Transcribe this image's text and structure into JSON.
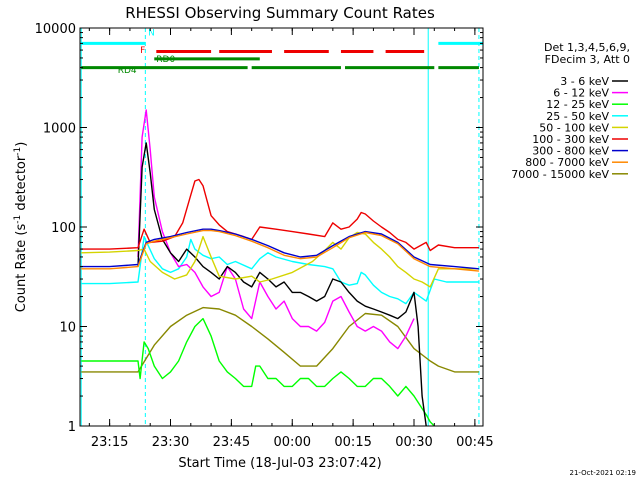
{
  "chart_data": {
    "type": "line",
    "title": "RHESSI Observing Summary Count Rates",
    "xlabel": "Start Time (18-Jul-03 23:07:42)",
    "ylabel": "Count Rate (s^-1 detector^-1)",
    "ylabel_main": "Count Rate (s",
    "ylabel_sup1": "-1",
    "ylabel_mid": " detector",
    "ylabel_sup2": "-1",
    "ylabel_end": ")",
    "x_unit": "minutes from 23:00 (18-Jul-03)",
    "xlim": [
      7.7,
      107
    ],
    "ylim": [
      1,
      10000
    ],
    "yscale": "log",
    "grid": false,
    "x_ticks": [
      {
        "value": 15,
        "label": "23:15"
      },
      {
        "value": 30,
        "label": "23:30"
      },
      {
        "value": 45,
        "label": "23:45"
      },
      {
        "value": 60,
        "label": "00:00"
      },
      {
        "value": 75,
        "label": "00:15"
      },
      {
        "value": 90,
        "label": "00:30"
      },
      {
        "value": 105,
        "label": "00:45"
      }
    ],
    "y_ticks": [
      {
        "value": 1,
        "label": "1"
      },
      {
        "value": 10,
        "label": "10"
      },
      {
        "value": 100,
        "label": "100"
      },
      {
        "value": 1000,
        "label": "1000"
      },
      {
        "value": 10000,
        "label": "10000"
      }
    ],
    "legend": {
      "placement": "right",
      "header": [
        "Det 1,3,4,5,6,9,",
        "FDecim 3, Att 0"
      ],
      "entries": [
        {
          "label": "3 - 6 keV",
          "color": "#000000"
        },
        {
          "label": "6 - 12 keV",
          "color": "#ff00ff"
        },
        {
          "label": "12 - 25 keV",
          "color": "#00ff00"
        },
        {
          "label": "25 - 50 keV",
          "color": "#00ffff"
        },
        {
          "label": "50 - 100 keV",
          "color": "#d4d400"
        },
        {
          "label": "100 - 300 keV",
          "color": "#ee0000"
        },
        {
          "label": "300 - 800 keV",
          "color": "#0000cc"
        },
        {
          "label": "800 - 7000 keV",
          "color": "#ff8800"
        },
        {
          "label": "7000 - 15000 keV",
          "color": "#888800"
        }
      ]
    },
    "series": [
      {
        "color": "#888800",
        "x": [
          8,
          22,
          26,
          30,
          34,
          38,
          42,
          46,
          50,
          54,
          58,
          62,
          66,
          70,
          74,
          78,
          82,
          86,
          90,
          94,
          96,
          100,
          106
        ],
        "y": [
          3.5,
          3.5,
          6.5,
          10,
          13,
          15.5,
          15,
          13,
          10,
          7.5,
          5.5,
          4,
          4,
          6,
          10,
          13.5,
          13,
          10,
          6,
          4.5,
          4,
          3.5,
          3.5
        ]
      },
      {
        "color": "#00ffff",
        "x": [
          8,
          15,
          22,
          23.5,
          24.5,
          26,
          28,
          30,
          32,
          34,
          35,
          36,
          38,
          40,
          42,
          44,
          46,
          50,
          52,
          54,
          56,
          60,
          64,
          68,
          70,
          72,
          74,
          76,
          77,
          78,
          80,
          82,
          84,
          86,
          88,
          90,
          93,
          95,
          98,
          100,
          106
        ],
        "y": [
          27,
          27,
          28,
          80,
          65,
          48,
          38,
          35,
          38,
          50,
          75,
          60,
          52,
          48,
          50,
          42,
          45,
          38,
          48,
          55,
          50,
          45,
          42,
          40,
          38,
          28,
          26,
          27,
          35,
          33,
          26,
          22,
          20,
          19,
          17,
          22,
          18,
          30,
          28,
          28,
          28
        ]
      },
      {
        "color": "#00ff00",
        "x": [
          8,
          22,
          22.5,
          23.5,
          24.5,
          26,
          28,
          30,
          32,
          34,
          36,
          38,
          40,
          42,
          44,
          46,
          48,
          50,
          51,
          52,
          54,
          56,
          58,
          60,
          62,
          64,
          66,
          68,
          70,
          72,
          74,
          76,
          78,
          80,
          82,
          84,
          86,
          88,
          90,
          92,
          93,
          94,
          95
        ],
        "y": [
          4.5,
          4.5,
          3,
          7,
          6,
          4,
          3,
          3.5,
          4.5,
          7,
          10,
          12,
          8,
          4.5,
          3.5,
          3,
          2.5,
          2.5,
          4,
          4,
          3,
          3,
          2.5,
          2.5,
          3,
          3,
          2.5,
          2.5,
          3,
          3.5,
          3,
          2.5,
          2.5,
          3,
          3,
          2.5,
          2,
          2.5,
          2,
          1.5,
          1.3,
          1.1,
          1
        ]
      },
      {
        "color": "#ff00ff",
        "x": [
          22,
          23,
          24,
          25,
          26,
          28,
          30,
          32,
          34,
          36,
          38,
          40,
          42,
          44,
          46,
          48,
          50,
          52,
          54,
          56,
          58,
          60,
          62,
          64,
          66,
          68,
          70,
          72,
          74,
          76,
          78,
          80,
          82,
          84,
          86,
          88,
          90
        ],
        "y": [
          50,
          800,
          1500,
          600,
          200,
          90,
          55,
          40,
          42,
          35,
          25,
          20,
          22,
          40,
          30,
          15,
          12,
          28,
          20,
          15,
          18,
          12,
          10,
          10,
          9,
          11,
          18,
          20,
          14,
          10,
          9,
          10,
          9,
          7,
          6,
          8,
          12
        ]
      },
      {
        "color": "#000000",
        "x": [
          22,
          23,
          24,
          25,
          26,
          28,
          30,
          32,
          34,
          36,
          38,
          40,
          42,
          44,
          46,
          48,
          50,
          52,
          54,
          56,
          58,
          60,
          62,
          64,
          66,
          68,
          70,
          72,
          74,
          76,
          78,
          80,
          82,
          84,
          86,
          88,
          90,
          91,
          92,
          93
        ],
        "y": [
          40,
          400,
          700,
          350,
          150,
          75,
          55,
          45,
          60,
          50,
          40,
          35,
          30,
          40,
          35,
          28,
          25,
          35,
          30,
          25,
          28,
          22,
          22,
          20,
          18,
          20,
          30,
          28,
          22,
          18,
          16,
          15,
          14,
          13,
          12,
          14,
          22,
          10,
          2,
          1
        ]
      },
      {
        "color": "#d4d400",
        "x": [
          8,
          15,
          22,
          23.5,
          25,
          28,
          31,
          34,
          36,
          38,
          40,
          42,
          46,
          50,
          52,
          55,
          60,
          65,
          68,
          70,
          72,
          74,
          76,
          78,
          80,
          82,
          84,
          86,
          88,
          90,
          92,
          94,
          96,
          100,
          106
        ],
        "y": [
          55,
          56,
          58,
          60,
          45,
          35,
          30,
          33,
          45,
          80,
          50,
          32,
          30,
          32,
          28,
          30,
          35,
          45,
          58,
          70,
          60,
          78,
          88,
          85,
          70,
          60,
          50,
          40,
          35,
          30,
          28,
          25,
          38,
          38,
          38
        ]
      },
      {
        "color": "#ee0000",
        "x": [
          8,
          15,
          22,
          23.5,
          25,
          28,
          31,
          33,
          35,
          36,
          37,
          38,
          40,
          42,
          44,
          46,
          48,
          50,
          52,
          56,
          60,
          64,
          68,
          70,
          72,
          74,
          76,
          77,
          78,
          80,
          82,
          84,
          86,
          88,
          90,
          93,
          94,
          96,
          100,
          106
        ],
        "y": [
          60,
          60,
          62,
          95,
          70,
          72,
          80,
          110,
          210,
          290,
          300,
          260,
          130,
          105,
          90,
          85,
          80,
          75,
          100,
          95,
          90,
          85,
          80,
          110,
          95,
          100,
          120,
          140,
          135,
          115,
          100,
          88,
          75,
          70,
          60,
          70,
          58,
          66,
          62,
          62
        ]
      },
      {
        "color": "#0000cc",
        "x": [
          8,
          15,
          22,
          24,
          26,
          30,
          34,
          38,
          40,
          42,
          46,
          50,
          54,
          58,
          62,
          66,
          70,
          74,
          78,
          82,
          86,
          90,
          94,
          100,
          106
        ],
        "y": [
          40,
          40,
          42,
          70,
          75,
          80,
          88,
          95,
          95,
          92,
          85,
          75,
          65,
          55,
          50,
          52,
          65,
          80,
          90,
          85,
          70,
          50,
          42,
          40,
          38
        ]
      },
      {
        "color": "#ff8800",
        "x": [
          8,
          15,
          22,
          24,
          26,
          30,
          34,
          38,
          40,
          42,
          46,
          50,
          54,
          58,
          62,
          66,
          70,
          74,
          78,
          82,
          86,
          90,
          94,
          100,
          106
        ],
        "y": [
          38,
          38,
          40,
          68,
          72,
          78,
          85,
          92,
          92,
          90,
          82,
          72,
          62,
          52,
          48,
          50,
          62,
          78,
          88,
          82,
          68,
          48,
          40,
          38,
          36
        ]
      }
    ],
    "vertical_lines": [
      {
        "x": 8,
        "style": "solid",
        "color": "#00ffff"
      },
      {
        "x": 23.8,
        "style": "dashed",
        "color": "#00ffff"
      },
      {
        "x": 93.5,
        "style": "solid",
        "color": "#00ffff"
      },
      {
        "x": 106,
        "style": "dashed",
        "color": "#00ffff"
      }
    ],
    "flag_bars": [
      {
        "name": "N",
        "color": "#00ffff",
        "y": 7000,
        "segments": [
          [
            8,
            23.8
          ],
          [
            96,
            107
          ]
        ]
      },
      {
        "name": "F",
        "color": "#ee0000",
        "y": 5800,
        "segments": [
          [
            26.5,
            40
          ],
          [
            42,
            55
          ],
          [
            58,
            69
          ],
          [
            72,
            80
          ],
          [
            83,
            92.5
          ]
        ]
      },
      {
        "name": "RD0",
        "color": "#008800",
        "y": 4900,
        "segments": [
          [
            26,
            52
          ]
        ]
      },
      {
        "name": "RD4",
        "color": "#008800",
        "y": 4000,
        "segments": [
          [
            8,
            49
          ],
          [
            50,
            72
          ],
          [
            73,
            95
          ],
          [
            96,
            106
          ]
        ]
      }
    ],
    "flag_labels": [
      {
        "text": "N",
        "color": "#00ffff",
        "x": 24.5,
        "y": 9000
      },
      {
        "text": "F",
        "color": "#ee0000",
        "x": 22.5,
        "y": 6000
      },
      {
        "text": "RD0",
        "color": "#008800",
        "x": 26.5,
        "y": 4900
      },
      {
        "text": "RD4",
        "color": "#008800",
        "x": 17,
        "y": 3800
      }
    ]
  },
  "footer": {
    "timestamp": "21-Oct-2021 02:19"
  }
}
